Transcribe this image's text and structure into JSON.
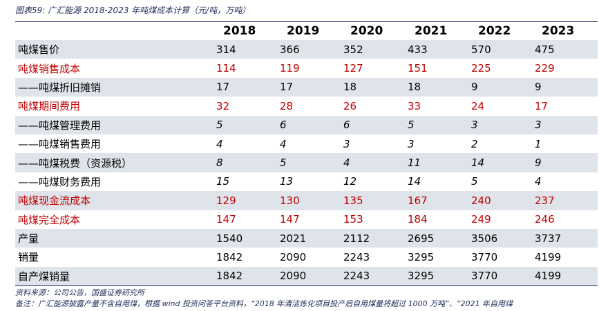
{
  "header": {
    "title": "图表59: 广汇能源 2018-2023 年吨煤成本计算（元/吨，万吨）"
  },
  "table": {
    "columns": [
      "2018",
      "2019",
      "2020",
      "2021",
      "2022",
      "2023"
    ],
    "rows": [
      {
        "label": "吨煤售价",
        "values": [
          314,
          366,
          352,
          433,
          570,
          475
        ]
      },
      {
        "label": "吨煤销售成本",
        "values": [
          114,
          119,
          127,
          151,
          225,
          229
        ]
      },
      {
        "label": "——吨煤折旧摊销",
        "values": [
          17,
          17,
          18,
          18,
          9,
          9
        ]
      },
      {
        "label": "吨煤期间费用",
        "values": [
          32,
          28,
          26,
          33,
          24,
          17
        ]
      },
      {
        "label": "——吨煤管理费用",
        "values": [
          5,
          6,
          6,
          5,
          3,
          3
        ]
      },
      {
        "label": "——吨煤销售费用",
        "values": [
          4,
          4,
          3,
          3,
          2,
          1
        ]
      },
      {
        "label": "——吨煤税费（资源税）",
        "values": [
          8,
          5,
          4,
          11,
          14,
          9
        ]
      },
      {
        "label": "——吨煤财务费用",
        "values": [
          15,
          13,
          12,
          14,
          5,
          4
        ]
      },
      {
        "label": "吨煤现金流成本",
        "values": [
          129,
          130,
          135,
          167,
          240,
          237
        ]
      },
      {
        "label": "吨煤完全成本",
        "values": [
          147,
          147,
          153,
          184,
          249,
          246
        ]
      },
      {
        "label": "产量",
        "values": [
          1540,
          2021,
          2112,
          2695,
          3506,
          3737
        ]
      },
      {
        "label": "销量",
        "values": [
          1842,
          2090,
          2243,
          3295,
          3770,
          4199
        ]
      },
      {
        "label": "自产煤销量",
        "values": [
          1842,
          2090,
          2243,
          3295,
          3770,
          4199
        ]
      }
    ]
  },
  "footer": {
    "source": "资料来源：公司公告，国盛证券研究所",
    "note": "备注：广汇能源披露产量不含自用煤，根据 wind 投资问答平台资料，“2018 年清洁炼化项目投产后自用煤量将超过 1000 万吨”、“2021 年自用煤"
  }
}
